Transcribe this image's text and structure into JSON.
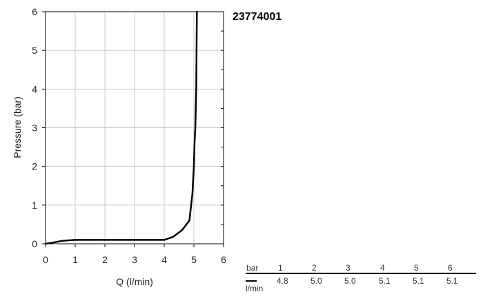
{
  "chart_data": {
    "type": "line",
    "title": "23774001",
    "xlabel": "Q (l/min)",
    "ylabel": "Pressure (bar)",
    "xlim": [
      0,
      6
    ],
    "ylim": [
      0,
      6
    ],
    "x_ticks": [
      "0",
      "1",
      "2",
      "3",
      "4",
      "5",
      "6"
    ],
    "y_ticks": [
      "0",
      "1",
      "2",
      "3",
      "4",
      "5",
      "6"
    ],
    "grid": true,
    "series": [
      {
        "x": [
          0,
          0.3,
          0.6,
          1.0,
          2.0,
          3.0,
          4.0,
          4.3,
          4.6,
          4.85,
          4.95,
          5.0,
          5.02,
          5.05,
          5.08,
          5.1
        ],
        "y": [
          0,
          0.04,
          0.08,
          0.1,
          0.1,
          0.1,
          0.1,
          0.18,
          0.35,
          0.6,
          1.3,
          2.0,
          2.6,
          3.0,
          4.0,
          6.0
        ]
      }
    ]
  },
  "flow_table": {
    "row1_label": "bar",
    "row2_label": "l/min",
    "pressures": [
      "1",
      "2",
      "3",
      "4",
      "5",
      "6"
    ],
    "flows": [
      "4.8",
      "5.0",
      "5.0",
      "5.1",
      "5.1",
      "5.1"
    ]
  }
}
